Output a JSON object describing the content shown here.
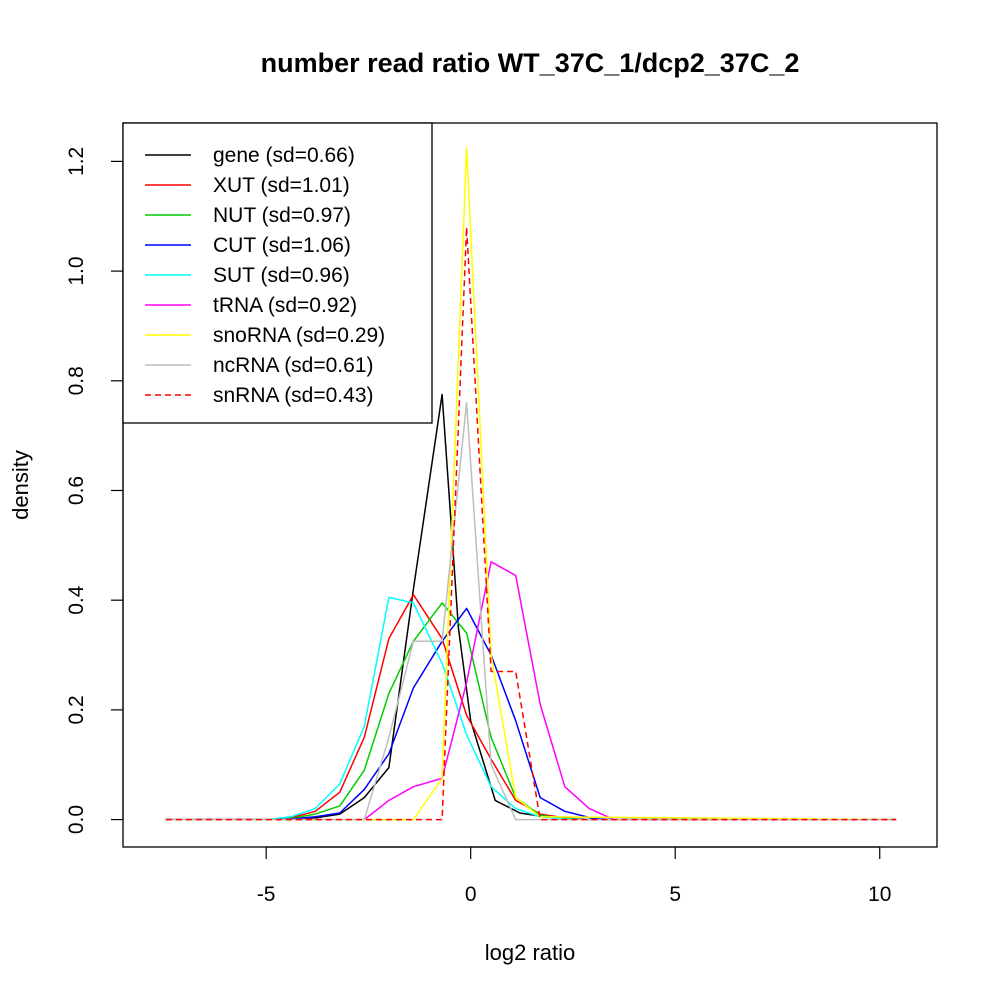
{
  "chart_data": {
    "type": "line",
    "title": "number read ratio WT_37C_1/dcp2_37C_2",
    "xlabel": "log2 ratio",
    "ylabel": "density",
    "xlim": [
      -8.5,
      11.4
    ],
    "ylim": [
      -0.05,
      1.27
    ],
    "xticks": [
      -5,
      0,
      5,
      10
    ],
    "yticks": [
      0.0,
      0.2,
      0.4,
      0.6,
      0.8,
      1.0,
      1.2
    ],
    "legend_position": "top-left",
    "grid": false,
    "series": [
      {
        "name": "gene (sd=0.66)",
        "color": "#000000",
        "dash": "solid",
        "x": [
          -7.45,
          -5.0,
          -4.4,
          -3.8,
          -3.2,
          -2.6,
          -2.0,
          -1.4,
          -0.7,
          -0.3,
          0.0,
          0.6,
          1.2,
          1.8,
          2.5,
          3.2,
          10.4
        ],
        "y": [
          0.0,
          0.0,
          0.001,
          0.003,
          0.01,
          0.04,
          0.095,
          0.42,
          0.775,
          0.35,
          0.18,
          0.035,
          0.012,
          0.005,
          0.001,
          0.0,
          0.0
        ]
      },
      {
        "name": "XUT (sd=1.01)",
        "color": "#ff0000",
        "dash": "solid",
        "x": [
          -7.45,
          -5.0,
          -4.4,
          -3.8,
          -3.2,
          -2.6,
          -2.0,
          -1.4,
          -0.7,
          -0.1,
          0.5,
          1.1,
          1.7,
          2.3,
          3.0,
          10.4
        ],
        "y": [
          0.0,
          0.0,
          0.003,
          0.015,
          0.05,
          0.15,
          0.33,
          0.41,
          0.33,
          0.19,
          0.11,
          0.035,
          0.01,
          0.003,
          0.0,
          0.0
        ]
      },
      {
        "name": "NUT (sd=0.97)",
        "color": "#00cd00",
        "dash": "solid",
        "x": [
          -7.45,
          -5.0,
          -4.4,
          -3.8,
          -3.2,
          -2.6,
          -2.0,
          -1.4,
          -0.7,
          -0.1,
          0.5,
          1.1,
          1.7,
          2.3,
          3.0,
          10.4
        ],
        "y": [
          0.0,
          0.0,
          0.002,
          0.01,
          0.025,
          0.09,
          0.23,
          0.325,
          0.395,
          0.34,
          0.15,
          0.04,
          0.008,
          0.002,
          0.0,
          0.0
        ]
      },
      {
        "name": "CUT (sd=1.06)",
        "color": "#0000ff",
        "dash": "solid",
        "x": [
          -7.45,
          -5.0,
          -4.4,
          -3.8,
          -3.2,
          -2.6,
          -2.0,
          -1.4,
          -0.7,
          -0.1,
          0.5,
          1.1,
          1.7,
          2.3,
          3.0,
          3.5,
          10.4
        ],
        "y": [
          0.0,
          0.0,
          0.001,
          0.005,
          0.012,
          0.055,
          0.12,
          0.24,
          0.325,
          0.385,
          0.3,
          0.18,
          0.04,
          0.015,
          0.002,
          0.0,
          0.0
        ]
      },
      {
        "name": "SUT (sd=0.96)",
        "color": "#00ffff",
        "dash": "solid",
        "x": [
          -7.45,
          -5.0,
          -4.4,
          -3.8,
          -3.2,
          -2.6,
          -2.0,
          -1.4,
          -0.7,
          -0.1,
          0.5,
          1.1,
          1.7,
          2.3,
          3.0,
          10.4
        ],
        "y": [
          0.0,
          0.0,
          0.005,
          0.02,
          0.065,
          0.17,
          0.405,
          0.395,
          0.285,
          0.155,
          0.06,
          0.02,
          0.005,
          0.001,
          0.0,
          0.0
        ]
      },
      {
        "name": "tRNA (sd=0.92)",
        "color": "#ff00ff",
        "dash": "solid",
        "x": [
          -7.45,
          -2.6,
          -2.0,
          -1.4,
          -0.7,
          -0.1,
          0.5,
          1.1,
          1.7,
          2.3,
          2.9,
          3.5,
          10.4
        ],
        "y": [
          0.0,
          0.0,
          0.035,
          0.06,
          0.075,
          0.25,
          0.47,
          0.445,
          0.21,
          0.06,
          0.02,
          0.0,
          0.0
        ]
      },
      {
        "name": "snoRNA (sd=0.29)",
        "color": "#ffff00",
        "dash": "solid",
        "x": [
          -7.45,
          -1.4,
          -0.7,
          -0.1,
          0.5,
          1.1,
          1.7,
          10.4
        ],
        "y": [
          0.0,
          0.0,
          0.075,
          1.225,
          0.3,
          0.04,
          0.005,
          0.0
        ]
      },
      {
        "name": "ncRNA (sd=0.61)",
        "color": "#bebebe",
        "dash": "solid",
        "x": [
          -7.45,
          -2.6,
          -2.0,
          -1.4,
          -0.7,
          -0.1,
          0.5,
          1.1,
          10.4
        ],
        "y": [
          0.0,
          0.0,
          0.15,
          0.325,
          0.325,
          0.76,
          0.1,
          0.0,
          0.0
        ]
      },
      {
        "name": "snRNA (sd=0.43)",
        "color": "#ff0000",
        "dash": "dashed",
        "x": [
          -7.45,
          -0.7,
          -0.1,
          0.5,
          1.1,
          1.7,
          10.4
        ],
        "y": [
          0.0,
          0.0,
          1.08,
          0.27,
          0.27,
          0.0,
          0.0
        ]
      }
    ]
  }
}
